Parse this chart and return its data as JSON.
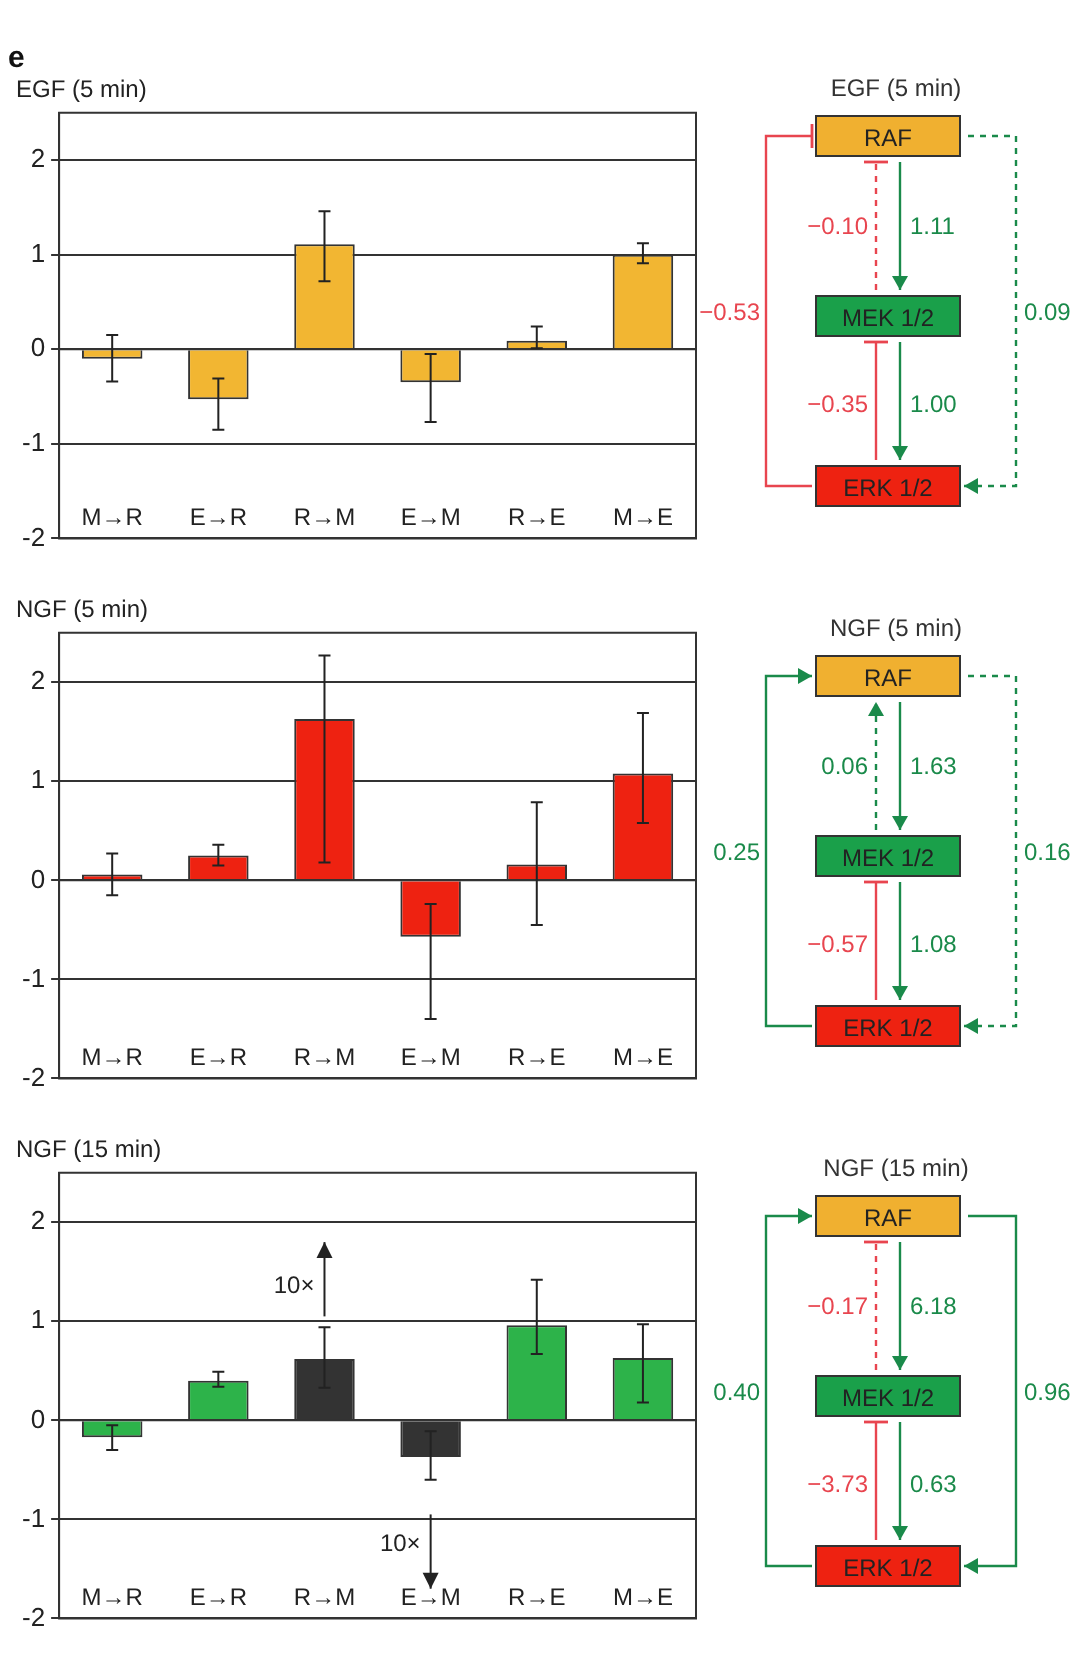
{
  "chart_data": [
    {
      "type": "bar",
      "title": "EGF (5 min)",
      "categories": [
        "M→R",
        "E→R",
        "R→M",
        "E→M",
        "R→E",
        "M→E"
      ],
      "values": [
        -0.1,
        -0.53,
        1.11,
        -0.35,
        0.09,
        1.0
      ],
      "color": "#f2b632",
      "errors": [
        [
          -0.34,
          0.15
        ],
        [
          -0.85,
          -0.31
        ],
        [
          0.72,
          1.46
        ],
        [
          -0.77,
          -0.05
        ],
        [
          0.01,
          0.24
        ],
        [
          0.91,
          1.12
        ]
      ],
      "ylim": [
        -2,
        2.5
      ],
      "yticks": [
        -2,
        -1,
        0,
        1,
        2
      ],
      "grid": "y",
      "annotations": [
        "e",
        "RAF",
        "MEK 1/2",
        "ERK 1/2",
        "−0.10",
        "−0.53",
        "1.11",
        "−0.35",
        "0.09",
        "1.00"
      ]
    },
    {
      "type": "bar",
      "title": "NGF (5 min)",
      "categories": [
        "M→R",
        "E→R",
        "R→M",
        "E→M",
        "R→E",
        "M→E"
      ],
      "values": [
        0.06,
        0.25,
        1.63,
        -0.57,
        0.16,
        1.08
      ],
      "color": "#ee2211",
      "errors": [
        [
          -0.15,
          0.27
        ],
        [
          0.15,
          0.36
        ],
        [
          0.18,
          2.27
        ],
        [
          -1.4,
          -0.24
        ],
        [
          -0.45,
          0.79
        ],
        [
          0.58,
          1.69
        ]
      ],
      "ylim": [
        -2,
        2.5
      ],
      "yticks": [
        -2,
        -1,
        0,
        1,
        2
      ],
      "grid": "y",
      "annotations": [
        "RAF",
        "MEK 1/2",
        "ERK 1/2",
        "0.06",
        "0.25",
        "1.63",
        "−0.57",
        "0.16",
        "1.08"
      ]
    },
    {
      "type": "bar",
      "title": "NGF (15 min)",
      "categories": [
        "M→R",
        "E→R",
        "R→M",
        "E→M",
        "R→E",
        "M→E"
      ],
      "values": [
        -0.17,
        0.4,
        0.62,
        -0.37,
        0.96,
        0.63
      ],
      "colors": [
        "#2db34a",
        "#2db34a",
        "#333333",
        "#333333",
        "#2db34a",
        "#2db34a"
      ],
      "errors": [
        [
          -0.3,
          -0.05
        ],
        [
          0.34,
          0.49
        ],
        [
          0.33,
          0.94
        ],
        [
          -0.6,
          -0.11
        ],
        [
          0.67,
          1.42
        ],
        [
          0.18,
          0.97
        ]
      ],
      "ylim": [
        -2,
        2.5
      ],
      "yticks": [
        -2,
        -1,
        0,
        1,
        2
      ],
      "grid": "y",
      "annotations": [
        "RAF",
        "MEK 1/2",
        "ERK 1/2",
        "−0.17",
        "0.40",
        "6.18",
        "−3.73",
        "0.96",
        "0.63",
        "10×",
        "10×"
      ]
    }
  ]
}
